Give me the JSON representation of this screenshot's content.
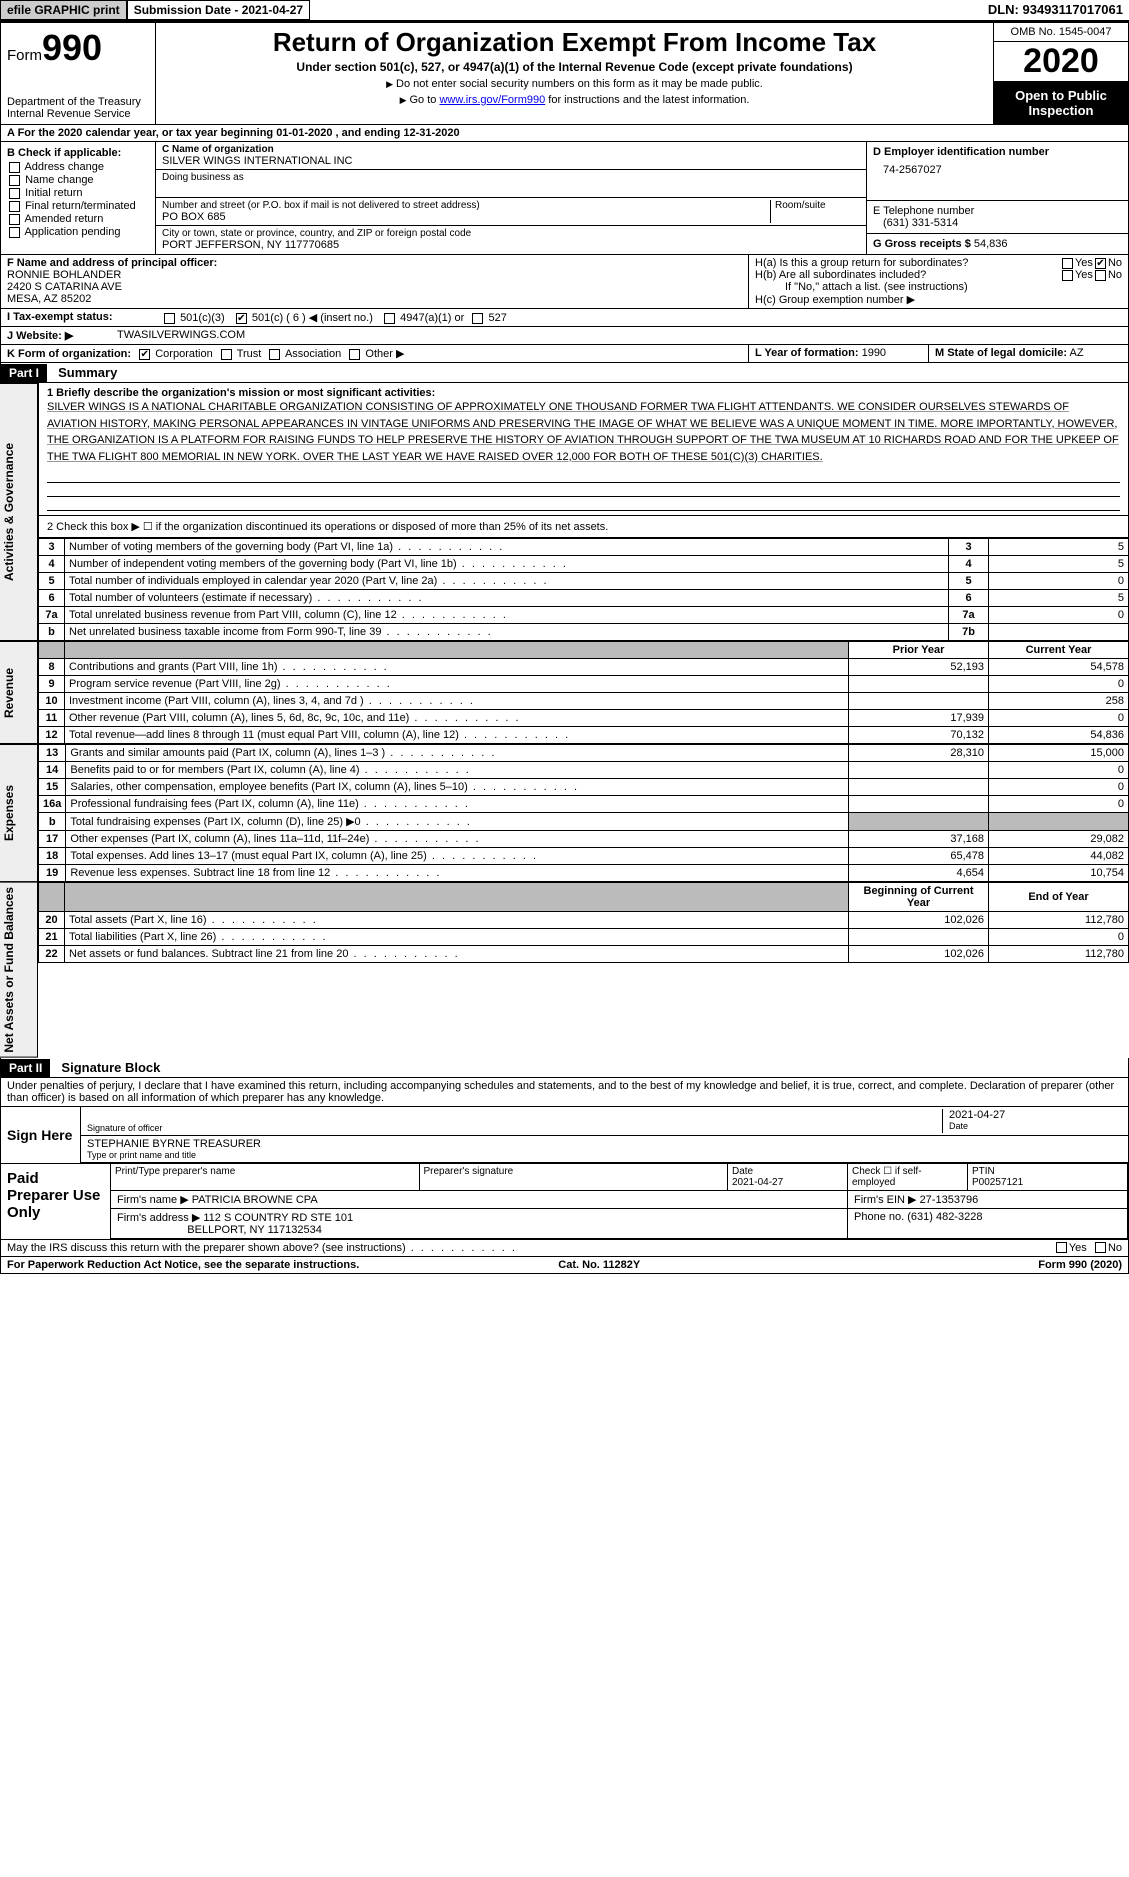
{
  "topbar": {
    "efile_btn": "efile GRAPHIC print",
    "submission_label": "Submission Date - 2021-04-27",
    "dln_label": "DLN: 93493117017061"
  },
  "header": {
    "form_label": "Form",
    "form_number": "990",
    "dept": "Department of the Treasury\nInternal Revenue Service",
    "title": "Return of Organization Exempt From Income Tax",
    "subtitle": "Under section 501(c), 527, or 4947(a)(1) of the Internal Revenue Code (except private foundations)",
    "note1": "Do not enter social security numbers on this form as it may be made public.",
    "note2_pre": "Go to ",
    "note2_link": "www.irs.gov/Form990",
    "note2_post": " for instructions and the latest information.",
    "omb": "OMB No. 1545-0047",
    "year": "2020",
    "open": "Open to Public Inspection"
  },
  "rowA": "A  For the 2020 calendar year, or tax year beginning 01-01-2020   , and ending 12-31-2020",
  "sectionB": {
    "label": "B Check if applicable:",
    "items": [
      "Address change",
      "Name change",
      "Initial return",
      "Final return/terminated",
      "Amended return",
      "Application pending"
    ]
  },
  "sectionC": {
    "name_label": "C Name of organization",
    "name": "SILVER WINGS INTERNATIONAL INC",
    "dba_label": "Doing business as",
    "dba": "",
    "street_label": "Number and street (or P.O. box if mail is not delivered to street address)",
    "suite_label": "Room/suite",
    "street": "PO BOX 685",
    "city_label": "City or town, state or province, country, and ZIP or foreign postal code",
    "city": "PORT JEFFERSON, NY  117770685"
  },
  "sectionD": {
    "label": "D Employer identification number",
    "value": "74-2567027"
  },
  "sectionE": {
    "label": "E Telephone number",
    "value": "(631) 331-5314"
  },
  "sectionG": {
    "label": "G Gross receipts $",
    "value": "54,836"
  },
  "sectionF": {
    "label": "F  Name and address of principal officer:",
    "name": "RONNIE BOHLANDER",
    "addr1": "2420 S CATARINA AVE",
    "addr2": "MESA, AZ  85202"
  },
  "sectionH": {
    "ha": "H(a)  Is this a group return for subordinates?",
    "ha_yes": "Yes",
    "ha_no": "No",
    "hb": "H(b)  Are all subordinates included?",
    "hb_yes": "Yes",
    "hb_no": "No",
    "hb_note": "If \"No,\" attach a list. (see instructions)",
    "hc": "H(c)  Group exemption number ▶"
  },
  "rowI": {
    "label": "I  Tax-exempt status:",
    "opt1": "501(c)(3)",
    "opt2": "501(c) ( 6 ) ◀ (insert no.)",
    "opt3": "4947(a)(1) or",
    "opt4": "527"
  },
  "rowJ": {
    "label": "J  Website: ▶",
    "value": "TWASILVERWINGS.COM"
  },
  "rowK": {
    "label": "K Form of organization:",
    "opts": [
      "Corporation",
      "Trust",
      "Association",
      "Other ▶"
    ]
  },
  "rowL": {
    "label": "L Year of formation:",
    "value": "1990"
  },
  "rowM": {
    "label": "M State of legal domicile:",
    "value": "AZ"
  },
  "part1": {
    "hdr": "Part I",
    "title": "Summary",
    "mission_label": "1  Briefly describe the organization's mission or most significant activities:",
    "mission": "SILVER WINGS IS A NATIONAL CHARITABLE ORGANIZATION CONSISTING OF APPROXIMATELY ONE THOUSAND FORMER TWA FLIGHT ATTENDANTS. WE CONSIDER OURSELVES STEWARDS OF AVIATION HISTORY, MAKING PERSONAL APPEARANCES IN VINTAGE UNIFORMS AND PRESERVING THE IMAGE OF WHAT WE BELIEVE WAS A UNIQUE MOMENT IN TIME. MORE IMPORTANTLY, HOWEVER, THE ORGANIZATION IS A PLATFORM FOR RAISING FUNDS TO HELP PRESERVE THE HISTORY OF AVIATION THROUGH SUPPORT OF THE TWA MUSEUM AT 10 RICHARDS ROAD AND FOR THE UPKEEP OF THE TWA FLIGHT 800 MEMORIAL IN NEW YORK. OVER THE LAST YEAR WE HAVE RAISED OVER 12,000 FOR BOTH OF THESE 501(C)(3) CHARITIES.",
    "line2": "2  Check this box ▶ ☐  if the organization discontinued its operations or disposed of more than 25% of its net assets.",
    "vlabel_ag": "Activities & Governance",
    "vlabel_rev": "Revenue",
    "vlabel_exp": "Expenses",
    "vlabel_na": "Net Assets or Fund Balances",
    "col_prior": "Prior Year",
    "col_current": "Current Year",
    "col_beg": "Beginning of Current Year",
    "col_end": "End of Year",
    "rows_gov": [
      {
        "no": "3",
        "desc": "Number of voting members of the governing body (Part VI, line 1a)",
        "box": "3",
        "val": "5"
      },
      {
        "no": "4",
        "desc": "Number of independent voting members of the governing body (Part VI, line 1b)",
        "box": "4",
        "val": "5"
      },
      {
        "no": "5",
        "desc": "Total number of individuals employed in calendar year 2020 (Part V, line 2a)",
        "box": "5",
        "val": "0"
      },
      {
        "no": "6",
        "desc": "Total number of volunteers (estimate if necessary)",
        "box": "6",
        "val": "5"
      },
      {
        "no": "7a",
        "desc": "Total unrelated business revenue from Part VIII, column (C), line 12",
        "box": "7a",
        "val": "0"
      },
      {
        "no": "b",
        "desc": "Net unrelated business taxable income from Form 990-T, line 39",
        "box": "7b",
        "val": ""
      }
    ],
    "rows_rev": [
      {
        "no": "8",
        "desc": "Contributions and grants (Part VIII, line 1h)",
        "prior": "52,193",
        "cur": "54,578"
      },
      {
        "no": "9",
        "desc": "Program service revenue (Part VIII, line 2g)",
        "prior": "",
        "cur": "0"
      },
      {
        "no": "10",
        "desc": "Investment income (Part VIII, column (A), lines 3, 4, and 7d )",
        "prior": "",
        "cur": "258"
      },
      {
        "no": "11",
        "desc": "Other revenue (Part VIII, column (A), lines 5, 6d, 8c, 9c, 10c, and 11e)",
        "prior": "17,939",
        "cur": "0"
      },
      {
        "no": "12",
        "desc": "Total revenue—add lines 8 through 11 (must equal Part VIII, column (A), line 12)",
        "prior": "70,132",
        "cur": "54,836"
      }
    ],
    "rows_exp": [
      {
        "no": "13",
        "desc": "Grants and similar amounts paid (Part IX, column (A), lines 1–3 )",
        "prior": "28,310",
        "cur": "15,000"
      },
      {
        "no": "14",
        "desc": "Benefits paid to or for members (Part IX, column (A), line 4)",
        "prior": "",
        "cur": "0"
      },
      {
        "no": "15",
        "desc": "Salaries, other compensation, employee benefits (Part IX, column (A), lines 5–10)",
        "prior": "",
        "cur": "0"
      },
      {
        "no": "16a",
        "desc": "Professional fundraising fees (Part IX, column (A), line 11e)",
        "prior": "",
        "cur": "0"
      },
      {
        "no": "b",
        "desc": "Total fundraising expenses (Part IX, column (D), line 25) ▶0",
        "prior": "SHADE",
        "cur": "SHADE"
      },
      {
        "no": "17",
        "desc": "Other expenses (Part IX, column (A), lines 11a–11d, 11f–24e)",
        "prior": "37,168",
        "cur": "29,082"
      },
      {
        "no": "18",
        "desc": "Total expenses. Add lines 13–17 (must equal Part IX, column (A), line 25)",
        "prior": "65,478",
        "cur": "44,082"
      },
      {
        "no": "19",
        "desc": "Revenue less expenses. Subtract line 18 from line 12",
        "prior": "4,654",
        "cur": "10,754"
      }
    ],
    "rows_na": [
      {
        "no": "20",
        "desc": "Total assets (Part X, line 16)",
        "prior": "102,026",
        "cur": "112,780"
      },
      {
        "no": "21",
        "desc": "Total liabilities (Part X, line 26)",
        "prior": "",
        "cur": "0"
      },
      {
        "no": "22",
        "desc": "Net assets or fund balances. Subtract line 21 from line 20",
        "prior": "102,026",
        "cur": "112,780"
      }
    ]
  },
  "part2": {
    "hdr": "Part II",
    "title": "Signature Block",
    "decl": "Under penalties of perjury, I declare that I have examined this return, including accompanying schedules and statements, and to the best of my knowledge and belief, it is true, correct, and complete. Declaration of preparer (other than officer) is based on all information of which preparer has any knowledge.",
    "sign_here": "Sign Here",
    "sig_officer": "Signature of officer",
    "sig_date_label": "Date",
    "sig_date": "2021-04-27",
    "name_title": "STEPHANIE BYRNE  TREASURER",
    "name_title_label": "Type or print name and title",
    "paid": "Paid Preparer Use Only",
    "p_name_label": "Print/Type preparer's name",
    "p_sig_label": "Preparer's signature",
    "p_date_label": "Date",
    "p_date": "2021-04-27",
    "p_self": "Check ☐ if self-employed",
    "p_ptin_label": "PTIN",
    "p_ptin": "P00257121",
    "firm_name_label": "Firm's name    ▶",
    "firm_name": "PATRICIA BROWNE CPA",
    "firm_ein_label": "Firm's EIN ▶",
    "firm_ein": "27-1353796",
    "firm_addr_label": "Firm's address ▶",
    "firm_addr1": "112 S COUNTRY RD STE 101",
    "firm_addr2": "BELLPORT, NY  117132534",
    "firm_phone_label": "Phone no.",
    "firm_phone": "(631) 482-3228",
    "discuss": "May the IRS discuss this return with the preparer shown above? (see instructions)",
    "discuss_yes": "Yes",
    "discuss_no": "No"
  },
  "footer": {
    "left": "For Paperwork Reduction Act Notice, see the separate instructions.",
    "mid": "Cat. No. 11282Y",
    "right": "Form 990 (2020)"
  }
}
